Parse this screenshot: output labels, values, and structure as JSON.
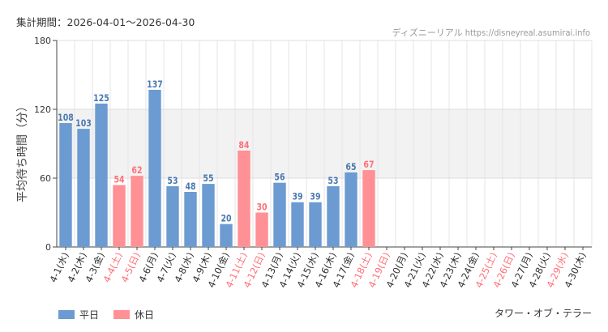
{
  "header": {
    "period": "集計期間：2026-04-01～2026-04-30",
    "source": "ディズニーリアル https://disneyreal.asumirai.info"
  },
  "attraction": "タワー・オブ・テラー",
  "legend": {
    "weekday": "平日",
    "holiday": "休日"
  },
  "colors": {
    "weekday": "#6b9bd1",
    "holiday": "#ff9095",
    "weekday_label": "#4a78b0",
    "holiday_label": "#ff6f78",
    "band": "#f2f2f2"
  },
  "chart_data": {
    "type": "bar",
    "ylabel": "平均待ち時間（分）",
    "ylim": [
      0,
      180
    ],
    "yticks": [
      0,
      60,
      120,
      180
    ],
    "shaded_band": [
      60,
      120
    ],
    "categories": [
      "4-1(水)",
      "4-2(木)",
      "4-3(金)",
      "4-4(土)",
      "4-5(日)",
      "4-6(月)",
      "4-7(火)",
      "4-8(水)",
      "4-9(木)",
      "4-10(金)",
      "4-11(土)",
      "4-12(日)",
      "4-13(月)",
      "4-14(火)",
      "4-15(水)",
      "4-16(木)",
      "4-17(金)",
      "4-18(土)",
      "4-19(日)",
      "4-20(月)",
      "4-21(火)",
      "4-22(水)",
      "4-23(木)",
      "4-24(金)",
      "4-25(土)",
      "4-26(日)",
      "4-27(月)",
      "4-28(火)",
      "4-29(水)",
      "4-30(木)"
    ],
    "values": [
      108,
      103,
      125,
      54,
      62,
      137,
      53,
      48,
      55,
      20,
      84,
      30,
      56,
      39,
      39,
      53,
      65,
      67,
      null,
      null,
      null,
      null,
      null,
      null,
      null,
      null,
      null,
      null,
      null,
      null
    ],
    "holiday": [
      false,
      false,
      false,
      true,
      true,
      false,
      false,
      false,
      false,
      false,
      true,
      true,
      false,
      false,
      false,
      false,
      false,
      true,
      true,
      false,
      false,
      false,
      false,
      false,
      true,
      true,
      false,
      false,
      true,
      false
    ]
  }
}
